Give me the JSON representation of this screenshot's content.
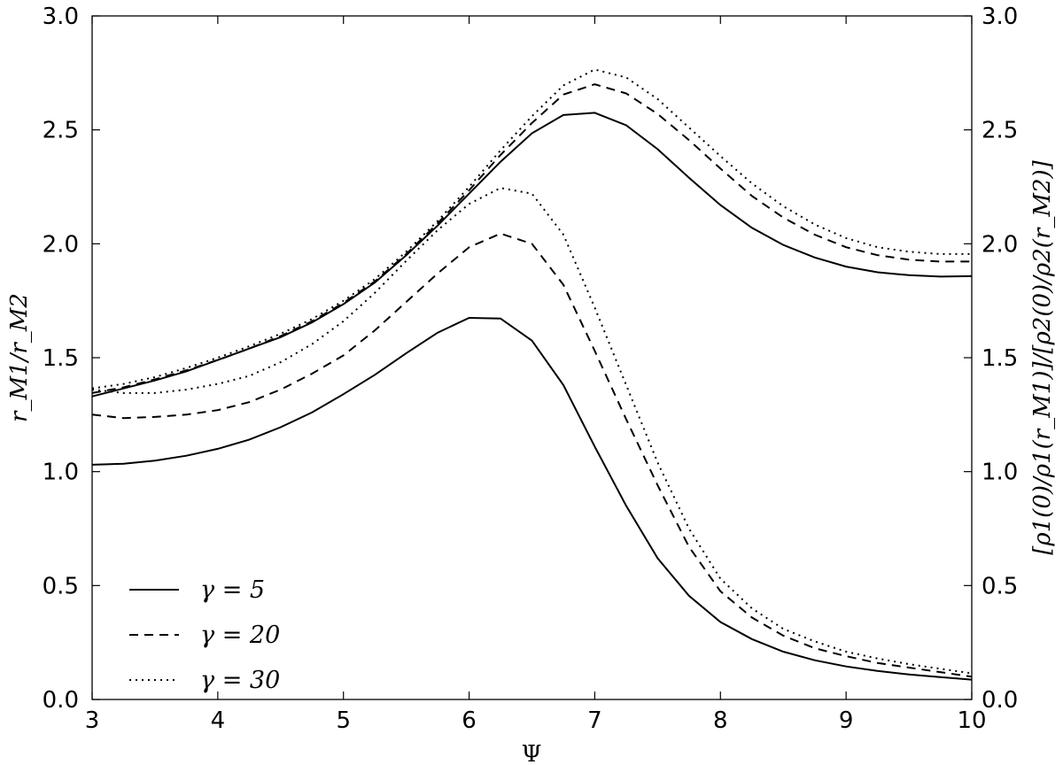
{
  "chart_data": {
    "type": "line",
    "xlabel": "Ψ",
    "ylabel": "r_M1/r_M2",
    "y2label": "[ρ1(0)/ρ1(r_M1)]/[ρ2(0)/ρ2(r_M2)]",
    "xlim": [
      3,
      10
    ],
    "ylim": [
      0,
      3
    ],
    "y2lim": [
      0,
      3
    ],
    "xticks": [
      "3",
      "4",
      "5",
      "6",
      "7",
      "8",
      "9",
      "10"
    ],
    "yticks": [
      "0.0",
      "0.5",
      "1.0",
      "1.5",
      "2.0",
      "2.5",
      "3.0"
    ],
    "y2ticks": [
      "0.0",
      "0.5",
      "1.0",
      "1.5",
      "2.0",
      "2.5",
      "3.0"
    ],
    "grid": false,
    "legend_position": "lower-left",
    "legend": [
      {
        "label": "γ = 5",
        "style": "solid"
      },
      {
        "label": "γ = 20",
        "style": "dashed"
      },
      {
        "label": "γ = 30",
        "style": "dotted"
      }
    ],
    "x": [
      3.0,
      3.25,
      3.5,
      3.75,
      4.0,
      4.25,
      4.5,
      4.75,
      5.0,
      5.25,
      5.5,
      5.75,
      6.0,
      6.25,
      6.5,
      6.75,
      7.0,
      7.25,
      7.5,
      7.75,
      8.0,
      8.25,
      8.5,
      8.75,
      9.0,
      9.25,
      9.5,
      9.75,
      10.0
    ],
    "series": [
      {
        "group": "r_M1/r_M2",
        "legend": "γ = 5",
        "style": "solid",
        "values": [
          1.03,
          1.035,
          1.048,
          1.07,
          1.1,
          1.14,
          1.195,
          1.26,
          1.34,
          1.425,
          1.52,
          1.61,
          1.675,
          1.672,
          1.575,
          1.38,
          1.11,
          0.85,
          0.62,
          0.455,
          0.34,
          0.265,
          0.21,
          0.172,
          0.145,
          0.125,
          0.11,
          0.098,
          0.087
        ]
      },
      {
        "group": "r_M1/r_M2",
        "legend": "γ = 20",
        "style": "dashed",
        "values": [
          1.25,
          1.235,
          1.24,
          1.25,
          1.27,
          1.305,
          1.36,
          1.43,
          1.51,
          1.62,
          1.745,
          1.87,
          1.985,
          2.045,
          2.0,
          1.82,
          1.53,
          1.23,
          0.94,
          0.67,
          0.475,
          0.36,
          0.28,
          0.225,
          0.19,
          0.16,
          0.14,
          0.12,
          0.1
        ]
      },
      {
        "group": "r_M1/r_M2",
        "legend": "γ = 30",
        "style": "dotted",
        "values": [
          1.36,
          1.345,
          1.345,
          1.36,
          1.385,
          1.42,
          1.48,
          1.56,
          1.66,
          1.785,
          1.925,
          2.06,
          2.175,
          2.245,
          2.22,
          2.04,
          1.72,
          1.38,
          1.04,
          0.75,
          0.53,
          0.4,
          0.31,
          0.255,
          0.21,
          0.18,
          0.155,
          0.135,
          0.115
        ]
      },
      {
        "group": "density ratio",
        "legend": "γ = 5",
        "style": "solid",
        "values": [
          1.33,
          1.365,
          1.4,
          1.44,
          1.49,
          1.54,
          1.59,
          1.655,
          1.735,
          1.83,
          1.95,
          2.08,
          2.22,
          2.36,
          2.485,
          2.565,
          2.575,
          2.52,
          2.415,
          2.29,
          2.17,
          2.07,
          1.995,
          1.94,
          1.9,
          1.875,
          1.862,
          1.856,
          1.858
        ]
      },
      {
        "group": "density ratio",
        "legend": "γ = 20",
        "style": "dashed",
        "values": [
          1.345,
          1.37,
          1.405,
          1.445,
          1.49,
          1.54,
          1.595,
          1.66,
          1.74,
          1.835,
          1.955,
          2.09,
          2.235,
          2.39,
          2.53,
          2.655,
          2.7,
          2.66,
          2.57,
          2.455,
          2.33,
          2.21,
          2.115,
          2.04,
          1.985,
          1.95,
          1.93,
          1.922,
          1.922
        ]
      },
      {
        "group": "density ratio",
        "legend": "γ = 30",
        "style": "dotted",
        "values": [
          1.365,
          1.385,
          1.415,
          1.455,
          1.5,
          1.55,
          1.605,
          1.67,
          1.75,
          1.845,
          1.965,
          2.1,
          2.25,
          2.41,
          2.56,
          2.695,
          2.765,
          2.73,
          2.635,
          2.51,
          2.385,
          2.265,
          2.165,
          2.085,
          2.025,
          1.985,
          1.965,
          1.955,
          1.955
        ]
      }
    ]
  }
}
